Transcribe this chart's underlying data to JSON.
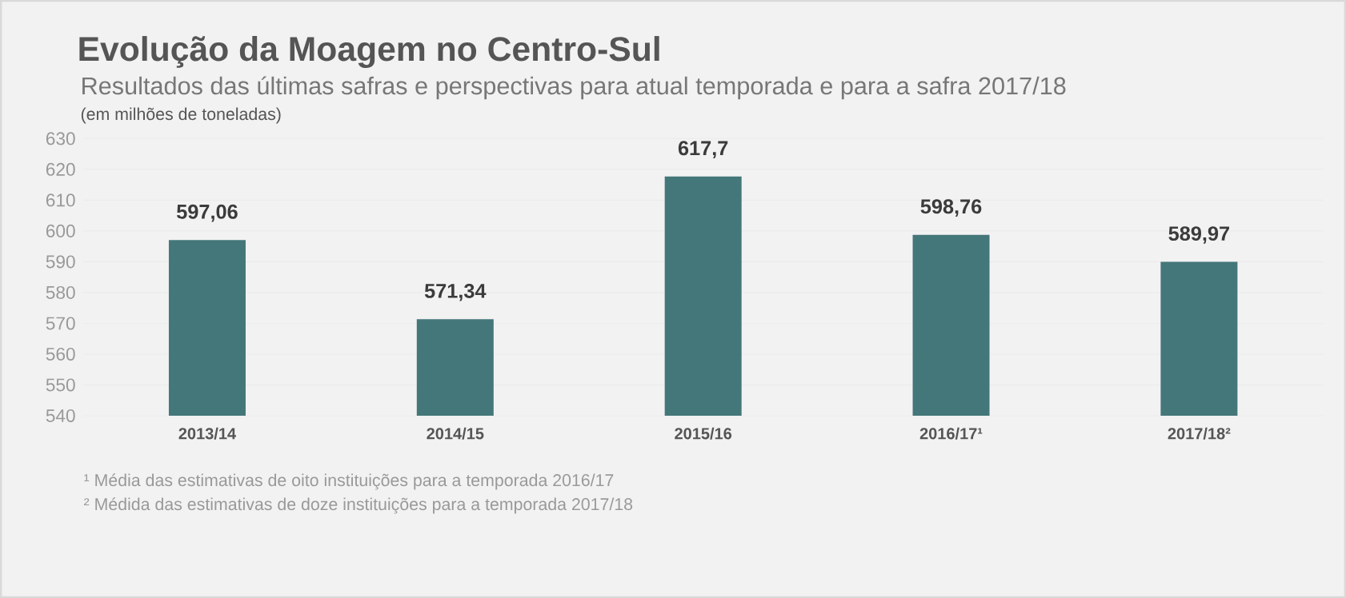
{
  "chart_data": {
    "type": "bar",
    "title": "Evolução da Moagem no Centro-Sul",
    "subtitle": "Resultados das últimas safras e perspectivas para atual temporada e para a safra 2017/18",
    "categories": [
      "2013/14",
      "2014/15",
      "2015/16",
      "2016/17¹",
      "2017/18²"
    ],
    "values": [
      597.06,
      571.34,
      617.7,
      598.76,
      589.97
    ],
    "value_labels": [
      "597,06",
      "571,34",
      "617,7",
      "598,76",
      "589,97"
    ],
    "color": "#44777a",
    "ylim": [
      540,
      630
    ],
    "yticks": [
      540,
      550,
      560,
      570,
      580,
      590,
      600,
      610,
      620,
      630
    ],
    "grid": "y",
    "annotations": [
      "(em milhões de toneladas)",
      "¹ Média das estimativas de oito instituições para a temporada 2016/17",
      "² Médida das estimativas de doze instituições para a temporada 2017/18"
    ]
  }
}
